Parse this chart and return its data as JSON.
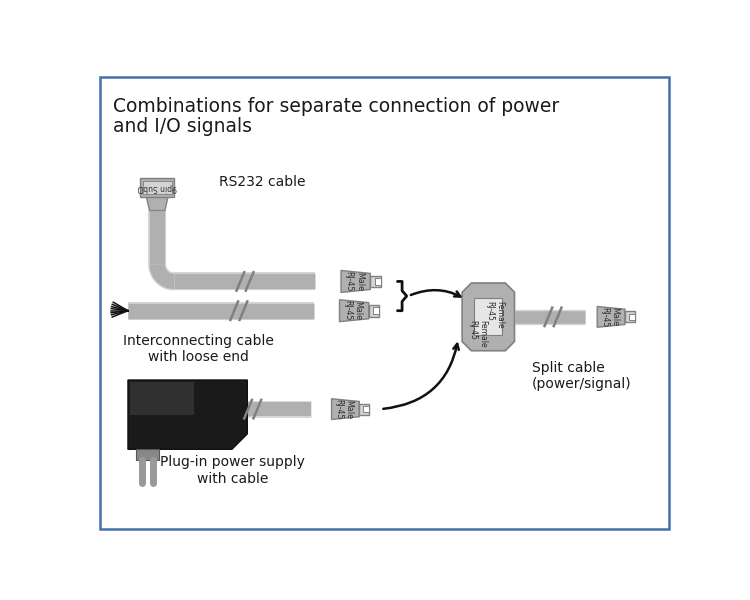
{
  "title_line1": "Combinations for separate connection of power",
  "title_line2": "and I/O signals",
  "title_fontsize": 13.5,
  "bg_color": "#ffffff",
  "border_color": "#4472a8",
  "gray": "#b0b0b0",
  "dgray": "#808080",
  "lgray": "#d4d4d4",
  "vdgray": "#606060",
  "black": "#111111",
  "white": "#ffffff",
  "near_white": "#f0f0f0",
  "text_color": "#1a1a1a",
  "label_rs232": "RS232 cable",
  "label_interconnect": "Interconnecting cable\nwith loose end",
  "label_split": "Split cable\n(power/signal)",
  "label_plugin": "Plug-in power supply\nwith cable"
}
